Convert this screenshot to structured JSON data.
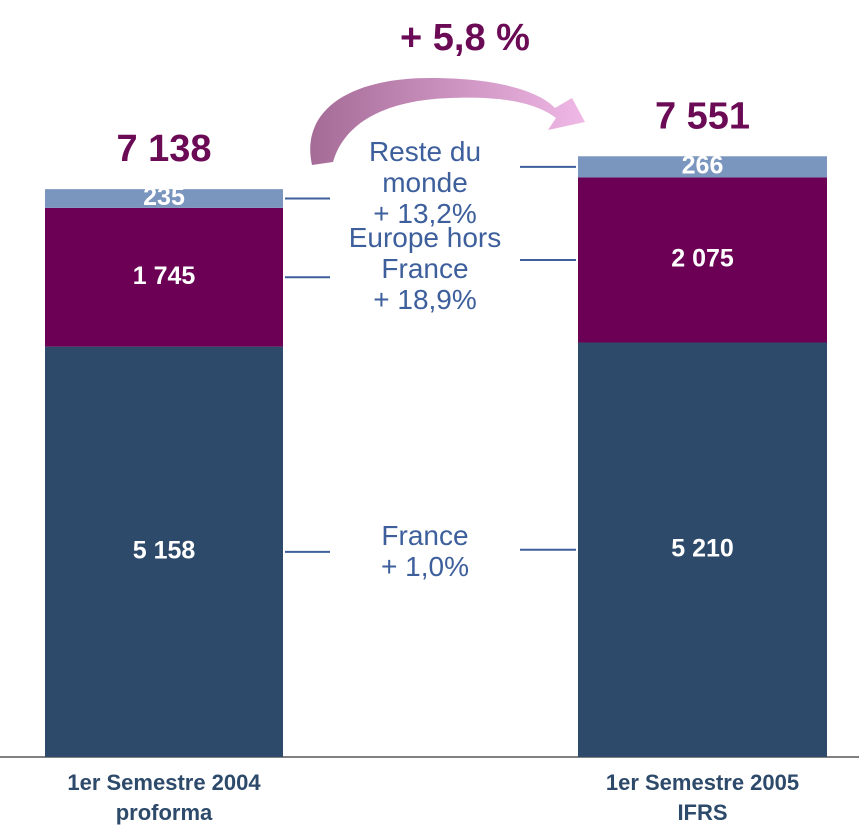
{
  "chart_data": {
    "type": "stacked_bar",
    "annotation": "+ 5,8 %",
    "categories": [
      "1er Semestre 2004 proforma",
      "1er Semestre 2005 IFRS"
    ],
    "series": [
      {
        "name": "France",
        "growth": "+ 1,0%",
        "color": "#2e4a6b",
        "values": [
          5158,
          5210
        ],
        "value_labels": [
          "5 158",
          "5 210"
        ]
      },
      {
        "name": "Europe hors France",
        "growth": "+ 18,9%",
        "color": "#6b0055",
        "values": [
          1745,
          2075
        ],
        "value_labels": [
          "1 745",
          "2 075"
        ]
      },
      {
        "name": "Reste du monde",
        "growth": "+ 13,2%",
        "color": "#7a96bf",
        "values": [
          235,
          266
        ],
        "value_labels": [
          "235",
          "266"
        ]
      }
    ],
    "totals": [
      7138,
      7551
    ],
    "total_labels": [
      "7 138",
      "7 551"
    ],
    "ylim": [
      0,
      9000
    ]
  }
}
